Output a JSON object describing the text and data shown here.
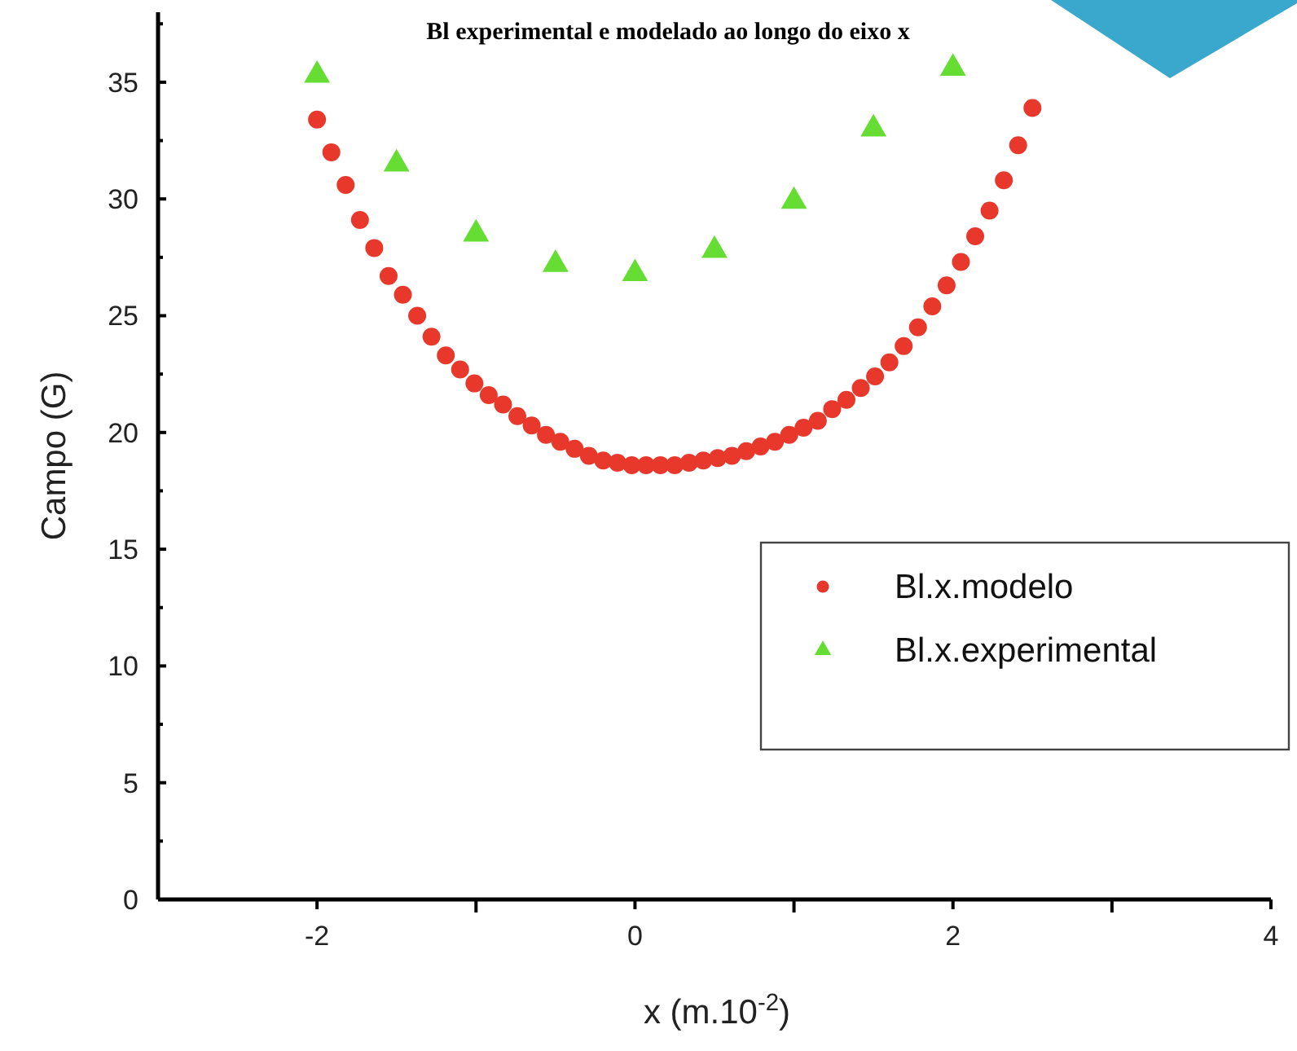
{
  "chart_data": {
    "type": "scatter",
    "title": "Bl experimental e modelado ao longo do eixo x",
    "xlabel": "x (m.10$^{-2}$)",
    "ylabel": "Campo (G)",
    "xlim": [
      -3,
      4
    ],
    "xticks": [
      -2,
      {
        "value": -1,
        "label": null
      },
      0,
      {
        "value": 1,
        "label": null
      },
      2,
      {
        "value": 3,
        "label": null
      },
      4
    ],
    "ylim": [
      0,
      38
    ],
    "yticks": [
      0,
      {
        "value": 2.5,
        "label": null
      },
      5,
      {
        "value": 7.5,
        "label": null
      },
      10,
      {
        "value": 12.5,
        "label": null
      },
      15,
      {
        "value": 17.5,
        "label": null
      },
      20,
      {
        "value": 22.5,
        "label": null
      },
      25,
      {
        "value": 27.5,
        "label": null
      },
      30,
      {
        "value": 32.5,
        "label": null
      },
      35,
      {
        "value": 37.5,
        "label": null
      }
    ],
    "legend": "right",
    "grid": false,
    "series": [
      {
        "name": "Bl.x.modelo",
        "color": "#e8372b",
        "marker": "circle",
        "x": [
          -2.0,
          -1.91,
          -1.82,
          -1.73,
          -1.64,
          -1.55,
          -1.46,
          -1.37,
          -1.28,
          -1.19,
          -1.1,
          -1.01,
          -0.92,
          -0.83,
          -0.74,
          -0.65,
          -0.56,
          -0.47,
          -0.38,
          -0.29,
          -0.2,
          -0.11,
          -0.02,
          0.07,
          0.16,
          0.25,
          0.34,
          0.43,
          0.52,
          0.61,
          0.7,
          0.79,
          0.88,
          0.97,
          1.06,
          1.15,
          1.24,
          1.33,
          1.42,
          1.51,
          1.6,
          1.69,
          1.78,
          1.87,
          1.96,
          2.05,
          2.14,
          2.23,
          2.32,
          2.41,
          2.5
        ],
        "values": [
          33.4,
          32.0,
          30.6,
          29.1,
          27.9,
          26.7,
          25.9,
          25.0,
          24.1,
          23.3,
          22.7,
          22.1,
          21.6,
          21.2,
          20.7,
          20.3,
          19.9,
          19.6,
          19.3,
          19.0,
          18.8,
          18.7,
          18.6,
          18.6,
          18.6,
          18.6,
          18.7,
          18.8,
          18.9,
          19.0,
          19.2,
          19.4,
          19.6,
          19.9,
          20.2,
          20.5,
          21.0,
          21.4,
          21.9,
          22.4,
          23.0,
          23.7,
          24.5,
          25.4,
          26.3,
          27.3,
          28.4,
          29.5,
          30.8,
          32.3,
          33.9
        ]
      },
      {
        "name": "Bl.x.experimental",
        "color": "#66dd33",
        "marker": "triangle",
        "x": [
          -2,
          -1.5,
          -1,
          -0.5,
          0,
          0.5,
          1,
          1.5,
          2
        ],
        "values": [
          35.3,
          31.5,
          28.5,
          27.2,
          26.8,
          27.8,
          29.9,
          33.0,
          35.6
        ]
      }
    ]
  }
}
